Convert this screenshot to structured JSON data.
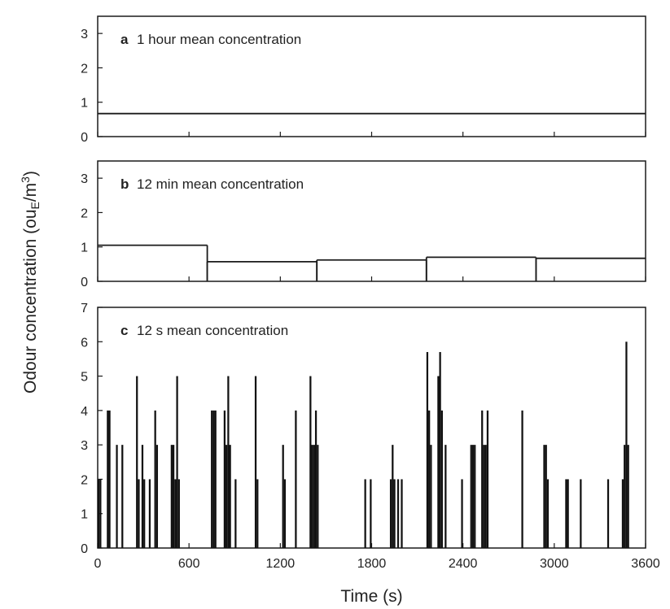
{
  "figure": {
    "ylabel": "Odour concentration (ou",
    "ylabel_sub": "E",
    "ylabel_mid": "/m",
    "ylabel_sup": "3",
    "ylabel_end": ")",
    "xlabel": "Time (s)"
  },
  "chart_data": [
    {
      "type": "line",
      "letter": "a",
      "title": "1 hour mean concentration",
      "xlim": [
        0,
        3600
      ],
      "ylim": [
        0,
        3.5
      ],
      "yticks": [
        0,
        1,
        2,
        3
      ],
      "xticks": [
        0,
        600,
        1200,
        1800,
        2400,
        3000,
        3600
      ],
      "steps": [
        {
          "start": 0,
          "end": 3600,
          "value": 0.67
        }
      ]
    },
    {
      "type": "line",
      "letter": "b",
      "title": "12 min mean concentration",
      "xlim": [
        0,
        3600
      ],
      "ylim": [
        0,
        3.5
      ],
      "yticks": [
        0,
        1,
        2,
        3
      ],
      "xticks": [
        0,
        600,
        1200,
        1800,
        2400,
        3000,
        3600
      ],
      "steps": [
        {
          "start": 0,
          "end": 720,
          "value": 1.05
        },
        {
          "start": 720,
          "end": 1440,
          "value": 0.57
        },
        {
          "start": 1440,
          "end": 2160,
          "value": 0.62
        },
        {
          "start": 2160,
          "end": 2880,
          "value": 0.7
        },
        {
          "start": 2880,
          "end": 3600,
          "value": 0.67
        }
      ]
    },
    {
      "type": "bar",
      "letter": "c",
      "title": "12 s mean concentration",
      "xlim": [
        0,
        3600
      ],
      "ylim": [
        0,
        7
      ],
      "yticks": [
        0,
        1,
        2,
        3,
        4,
        5,
        6,
        7
      ],
      "xticks": [
        0,
        600,
        1200,
        1800,
        2400,
        3000,
        3600
      ],
      "xticklabels": [
        "0",
        "600",
        "1200",
        "1800",
        "2400",
        "3000",
        "3600"
      ],
      "bin_width_s": 12,
      "bars": [
        {
          "t": 0,
          "v": 2
        },
        {
          "t": 12,
          "v": 2
        },
        {
          "t": 60,
          "v": 4
        },
        {
          "t": 72,
          "v": 4
        },
        {
          "t": 120,
          "v": 3
        },
        {
          "t": 156,
          "v": 3
        },
        {
          "t": 252,
          "v": 5
        },
        {
          "t": 264,
          "v": 2
        },
        {
          "t": 288,
          "v": 3
        },
        {
          "t": 300,
          "v": 2
        },
        {
          "t": 336,
          "v": 2
        },
        {
          "t": 372,
          "v": 4
        },
        {
          "t": 384,
          "v": 3
        },
        {
          "t": 480,
          "v": 3
        },
        {
          "t": 492,
          "v": 3
        },
        {
          "t": 504,
          "v": 2
        },
        {
          "t": 516,
          "v": 5
        },
        {
          "t": 528,
          "v": 2
        },
        {
          "t": 744,
          "v": 4
        },
        {
          "t": 756,
          "v": 4
        },
        {
          "t": 768,
          "v": 4
        },
        {
          "t": 828,
          "v": 4
        },
        {
          "t": 840,
          "v": 3
        },
        {
          "t": 852,
          "v": 5
        },
        {
          "t": 864,
          "v": 3
        },
        {
          "t": 900,
          "v": 2
        },
        {
          "t": 1032,
          "v": 5
        },
        {
          "t": 1044,
          "v": 2
        },
        {
          "t": 1212,
          "v": 3
        },
        {
          "t": 1224,
          "v": 2
        },
        {
          "t": 1296,
          "v": 4
        },
        {
          "t": 1392,
          "v": 5
        },
        {
          "t": 1404,
          "v": 3
        },
        {
          "t": 1416,
          "v": 3
        },
        {
          "t": 1428,
          "v": 4
        },
        {
          "t": 1440,
          "v": 3
        },
        {
          "t": 1752,
          "v": 2
        },
        {
          "t": 1788,
          "v": 2
        },
        {
          "t": 1920,
          "v": 2
        },
        {
          "t": 1932,
          "v": 3
        },
        {
          "t": 1944,
          "v": 2
        },
        {
          "t": 1968,
          "v": 2
        },
        {
          "t": 1992,
          "v": 2
        },
        {
          "t": 2160,
          "v": 5.7
        },
        {
          "t": 2172,
          "v": 4
        },
        {
          "t": 2184,
          "v": 3
        },
        {
          "t": 2232,
          "v": 5
        },
        {
          "t": 2244,
          "v": 5.7
        },
        {
          "t": 2256,
          "v": 4
        },
        {
          "t": 2280,
          "v": 3
        },
        {
          "t": 2388,
          "v": 2
        },
        {
          "t": 2448,
          "v": 3
        },
        {
          "t": 2460,
          "v": 3
        },
        {
          "t": 2472,
          "v": 3
        },
        {
          "t": 2520,
          "v": 4
        },
        {
          "t": 2532,
          "v": 3
        },
        {
          "t": 2544,
          "v": 3
        },
        {
          "t": 2556,
          "v": 4
        },
        {
          "t": 2784,
          "v": 4
        },
        {
          "t": 2928,
          "v": 3
        },
        {
          "t": 2940,
          "v": 3
        },
        {
          "t": 2952,
          "v": 2
        },
        {
          "t": 3072,
          "v": 2
        },
        {
          "t": 3084,
          "v": 2
        },
        {
          "t": 3168,
          "v": 2
        },
        {
          "t": 3348,
          "v": 2
        },
        {
          "t": 3444,
          "v": 2
        },
        {
          "t": 3456,
          "v": 3
        },
        {
          "t": 3468,
          "v": 6
        },
        {
          "t": 3480,
          "v": 3
        }
      ]
    }
  ]
}
